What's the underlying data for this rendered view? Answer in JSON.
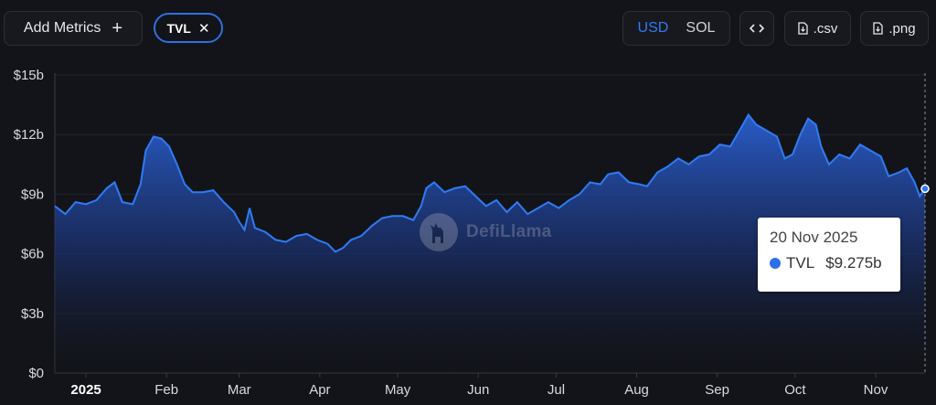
{
  "toolbar": {
    "add_metrics_label": "Add Metrics",
    "add_icon": "plus-icon",
    "metric_chip": "TVL",
    "chip_close_icon": "close-icon",
    "currency_options": [
      "USD",
      "SOL"
    ],
    "currency_selected": "USD",
    "embed_icon": "code-icon",
    "csv_label": ".csv",
    "png_label": ".png",
    "download_icon": "file-download-icon"
  },
  "watermark": "DefiLlama",
  "tooltip": {
    "date": "20 Nov 2025",
    "series": "TVL",
    "value": "$9.275b"
  },
  "colors": {
    "accent": "#2f7bf5",
    "line": "#2f7bf5",
    "background": "#131419"
  },
  "chart_data": {
    "type": "area",
    "series_name": "TVL",
    "y_unit": "billion USD",
    "ylim": [
      0,
      15
    ],
    "yticks": [
      "$0",
      "$3b",
      "$6b",
      "$9b",
      "$12b",
      "$15b"
    ],
    "ytick_values": [
      0,
      3,
      6,
      9,
      12,
      15
    ],
    "xticks": [
      "2025",
      "Feb",
      "Mar",
      "Apr",
      "May",
      "Jun",
      "Jul",
      "Aug",
      "Sep",
      "Oct",
      "Nov"
    ],
    "xtick_dates": [
      "2025-01-01",
      "2025-02-01",
      "2025-03-01",
      "2025-04-01",
      "2025-05-01",
      "2025-06-01",
      "2025-07-01",
      "2025-08-01",
      "2025-09-01",
      "2025-10-01",
      "2025-11-01"
    ],
    "x_range": [
      "2024-12-20",
      "2025-11-20"
    ],
    "grid": true,
    "points": [
      [
        "2024-12-20",
        8.4
      ],
      [
        "2024-12-24",
        8.0
      ],
      [
        "2024-12-28",
        8.6
      ],
      [
        "2025-01-01",
        8.5
      ],
      [
        "2025-01-05",
        8.7
      ],
      [
        "2025-01-09",
        9.3
      ],
      [
        "2025-01-12",
        9.6
      ],
      [
        "2025-01-15",
        8.6
      ],
      [
        "2025-01-19",
        8.5
      ],
      [
        "2025-01-22",
        9.5
      ],
      [
        "2025-01-24",
        11.2
      ],
      [
        "2025-01-27",
        11.9
      ],
      [
        "2025-01-30",
        11.8
      ],
      [
        "2025-02-02",
        11.4
      ],
      [
        "2025-02-05",
        10.5
      ],
      [
        "2025-02-08",
        9.5
      ],
      [
        "2025-02-11",
        9.1
      ],
      [
        "2025-02-15",
        9.1
      ],
      [
        "2025-02-19",
        9.2
      ],
      [
        "2025-02-23",
        8.6
      ],
      [
        "2025-02-27",
        8.1
      ],
      [
        "2025-03-01",
        7.6
      ],
      [
        "2025-03-03",
        7.2
      ],
      [
        "2025-03-05",
        8.3
      ],
      [
        "2025-03-07",
        7.3
      ],
      [
        "2025-03-11",
        7.1
      ],
      [
        "2025-03-15",
        6.7
      ],
      [
        "2025-03-19",
        6.6
      ],
      [
        "2025-03-23",
        6.9
      ],
      [
        "2025-03-27",
        7.0
      ],
      [
        "2025-03-31",
        6.7
      ],
      [
        "2025-04-04",
        6.5
      ],
      [
        "2025-04-07",
        6.1
      ],
      [
        "2025-04-10",
        6.3
      ],
      [
        "2025-04-13",
        6.7
      ],
      [
        "2025-04-17",
        6.9
      ],
      [
        "2025-04-21",
        7.4
      ],
      [
        "2025-04-25",
        7.8
      ],
      [
        "2025-04-29",
        7.9
      ],
      [
        "2025-05-03",
        7.9
      ],
      [
        "2025-05-07",
        7.7
      ],
      [
        "2025-05-10",
        8.4
      ],
      [
        "2025-05-12",
        9.3
      ],
      [
        "2025-05-15",
        9.6
      ],
      [
        "2025-05-19",
        9.1
      ],
      [
        "2025-05-23",
        9.3
      ],
      [
        "2025-05-27",
        9.4
      ],
      [
        "2025-05-31",
        8.9
      ],
      [
        "2025-06-04",
        8.4
      ],
      [
        "2025-06-08",
        8.7
      ],
      [
        "2025-06-12",
        8.1
      ],
      [
        "2025-06-16",
        8.6
      ],
      [
        "2025-06-20",
        8.0
      ],
      [
        "2025-06-24",
        8.3
      ],
      [
        "2025-06-28",
        8.6
      ],
      [
        "2025-07-02",
        8.3
      ],
      [
        "2025-07-06",
        8.7
      ],
      [
        "2025-07-10",
        9.0
      ],
      [
        "2025-07-14",
        9.6
      ],
      [
        "2025-07-18",
        9.5
      ],
      [
        "2025-07-21",
        10.0
      ],
      [
        "2025-07-25",
        10.1
      ],
      [
        "2025-07-29",
        9.6
      ],
      [
        "2025-08-02",
        9.5
      ],
      [
        "2025-08-05",
        9.4
      ],
      [
        "2025-08-09",
        10.1
      ],
      [
        "2025-08-13",
        10.4
      ],
      [
        "2025-08-17",
        10.8
      ],
      [
        "2025-08-21",
        10.5
      ],
      [
        "2025-08-25",
        10.9
      ],
      [
        "2025-08-29",
        11.0
      ],
      [
        "2025-09-02",
        11.5
      ],
      [
        "2025-09-06",
        11.4
      ],
      [
        "2025-09-10",
        12.3
      ],
      [
        "2025-09-13",
        13.0
      ],
      [
        "2025-09-16",
        12.5
      ],
      [
        "2025-09-20",
        12.2
      ],
      [
        "2025-09-24",
        11.9
      ],
      [
        "2025-09-27",
        10.8
      ],
      [
        "2025-09-30",
        11.0
      ],
      [
        "2025-10-03",
        12.0
      ],
      [
        "2025-10-06",
        12.8
      ],
      [
        "2025-10-09",
        12.5
      ],
      [
        "2025-10-11",
        11.4
      ],
      [
        "2025-10-14",
        10.5
      ],
      [
        "2025-10-18",
        11.0
      ],
      [
        "2025-10-22",
        10.8
      ],
      [
        "2025-10-26",
        11.5
      ],
      [
        "2025-10-30",
        11.2
      ],
      [
        "2025-11-03",
        10.9
      ],
      [
        "2025-11-06",
        9.9
      ],
      [
        "2025-11-10",
        10.1
      ],
      [
        "2025-11-13",
        10.3
      ],
      [
        "2025-11-16",
        9.6
      ],
      [
        "2025-11-18",
        8.9
      ],
      [
        "2025-11-20",
        9.275
      ]
    ]
  }
}
